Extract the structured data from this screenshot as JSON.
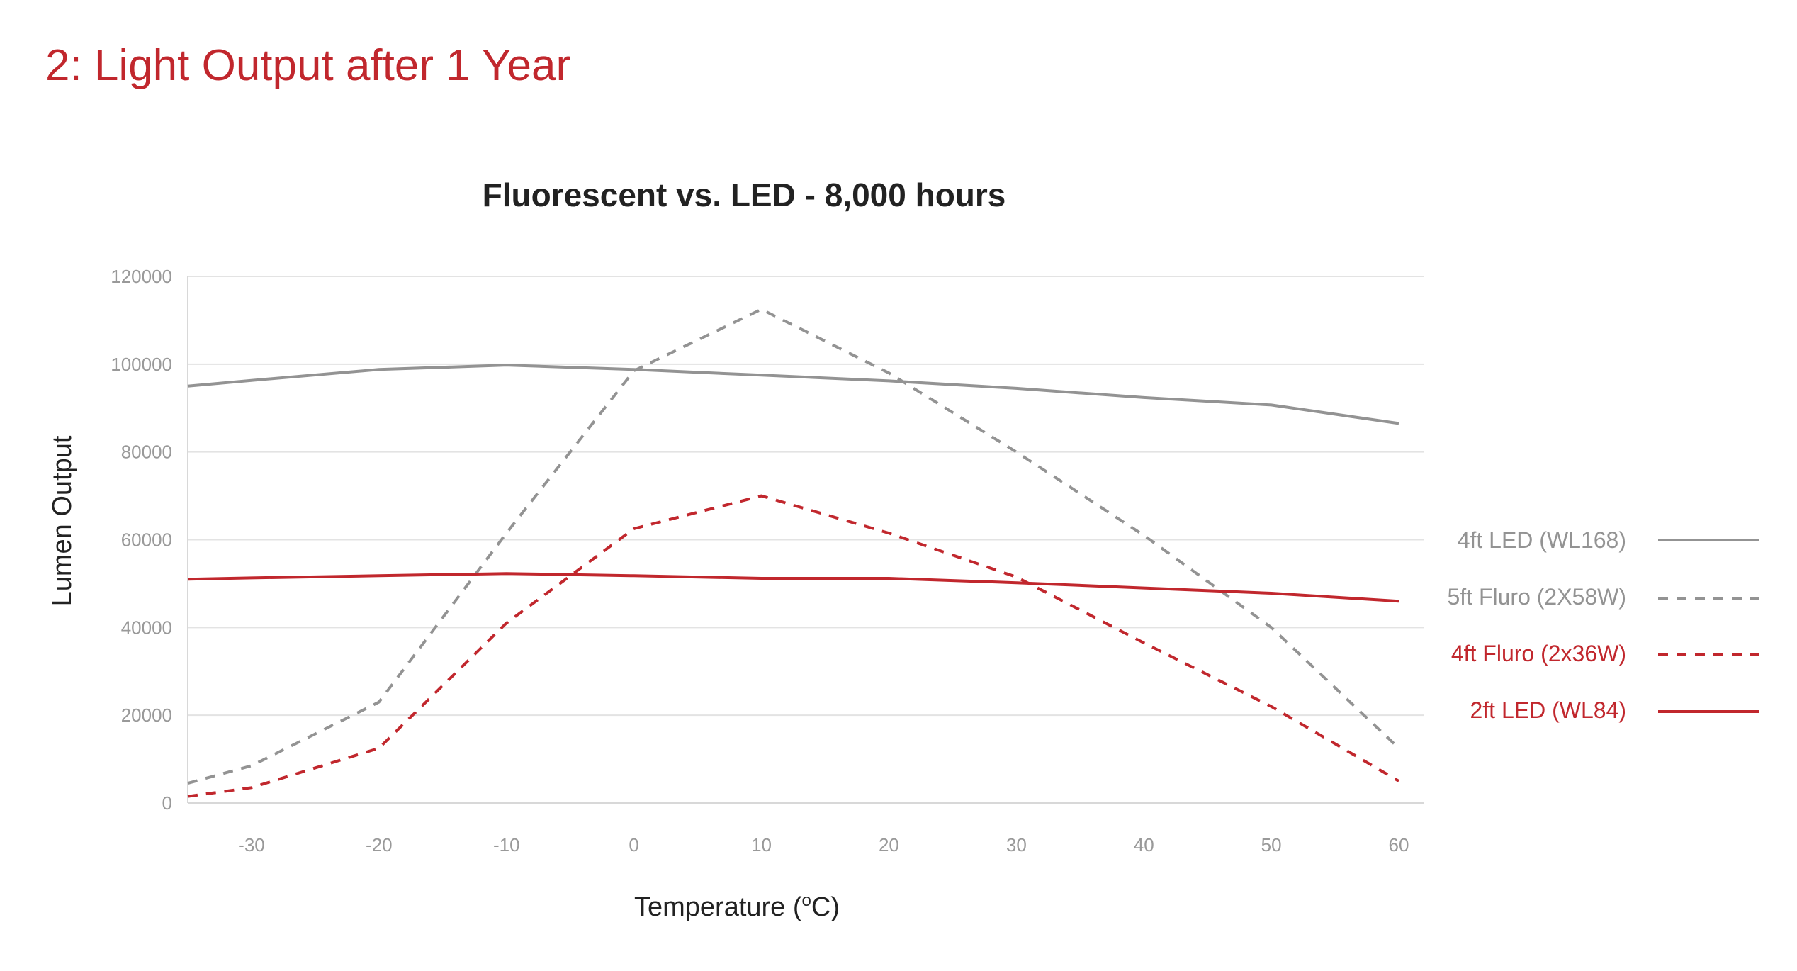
{
  "page": {
    "heading": "2: Light Output after 1 Year"
  },
  "colors": {
    "heading": "#c1272d",
    "grey_series": "#939393",
    "red_series": "#c1272d",
    "grid": "#e3e3e3",
    "tick_text": "#999999"
  },
  "chart_data": {
    "type": "line",
    "title": "Fluorescent vs. LED - 8,000 hours",
    "xlabel": "Temperature (",
    "xlabel_sup": "o",
    "xlabel_suffix": "C)",
    "ylabel": "Lumen Output",
    "x": [
      -35,
      -30,
      -20,
      -10,
      0,
      10,
      20,
      30,
      40,
      50,
      60
    ],
    "x_ticks": [
      -30,
      -20,
      -10,
      0,
      10,
      20,
      30,
      40,
      50,
      60
    ],
    "xlim": [
      -35,
      62
    ],
    "y_ticks": [
      0,
      20000,
      40000,
      60000,
      80000,
      100000,
      120000
    ],
    "ylim": [
      0,
      120000
    ],
    "grid": "horizontal",
    "legend_position": "right",
    "series": [
      {
        "name": "4ft LED (WL168)",
        "color": "#939393",
        "dashed": false,
        "values": [
          95000,
          96300,
          98800,
          99800,
          98800,
          97500,
          96200,
          94500,
          92400,
          90700,
          86500
        ]
      },
      {
        "name": "5ft Fluro (2X58W)",
        "color": "#939393",
        "dashed": true,
        "values": [
          4500,
          8500,
          23000,
          61500,
          98500,
          112500,
          98000,
          80000,
          61000,
          40000,
          12500
        ]
      },
      {
        "name": "4ft Fluro (2x36W)",
        "color": "#c1272d",
        "dashed": true,
        "values": [
          1500,
          3500,
          12500,
          41000,
          62500,
          70000,
          61500,
          51500,
          36500,
          22000,
          5000
        ]
      },
      {
        "name": "2ft LED (WL84)",
        "color": "#c1272d",
        "dashed": false,
        "values": [
          51000,
          51300,
          51800,
          52300,
          51800,
          51200,
          51200,
          50200,
          49000,
          47800,
          46000
        ]
      }
    ]
  }
}
